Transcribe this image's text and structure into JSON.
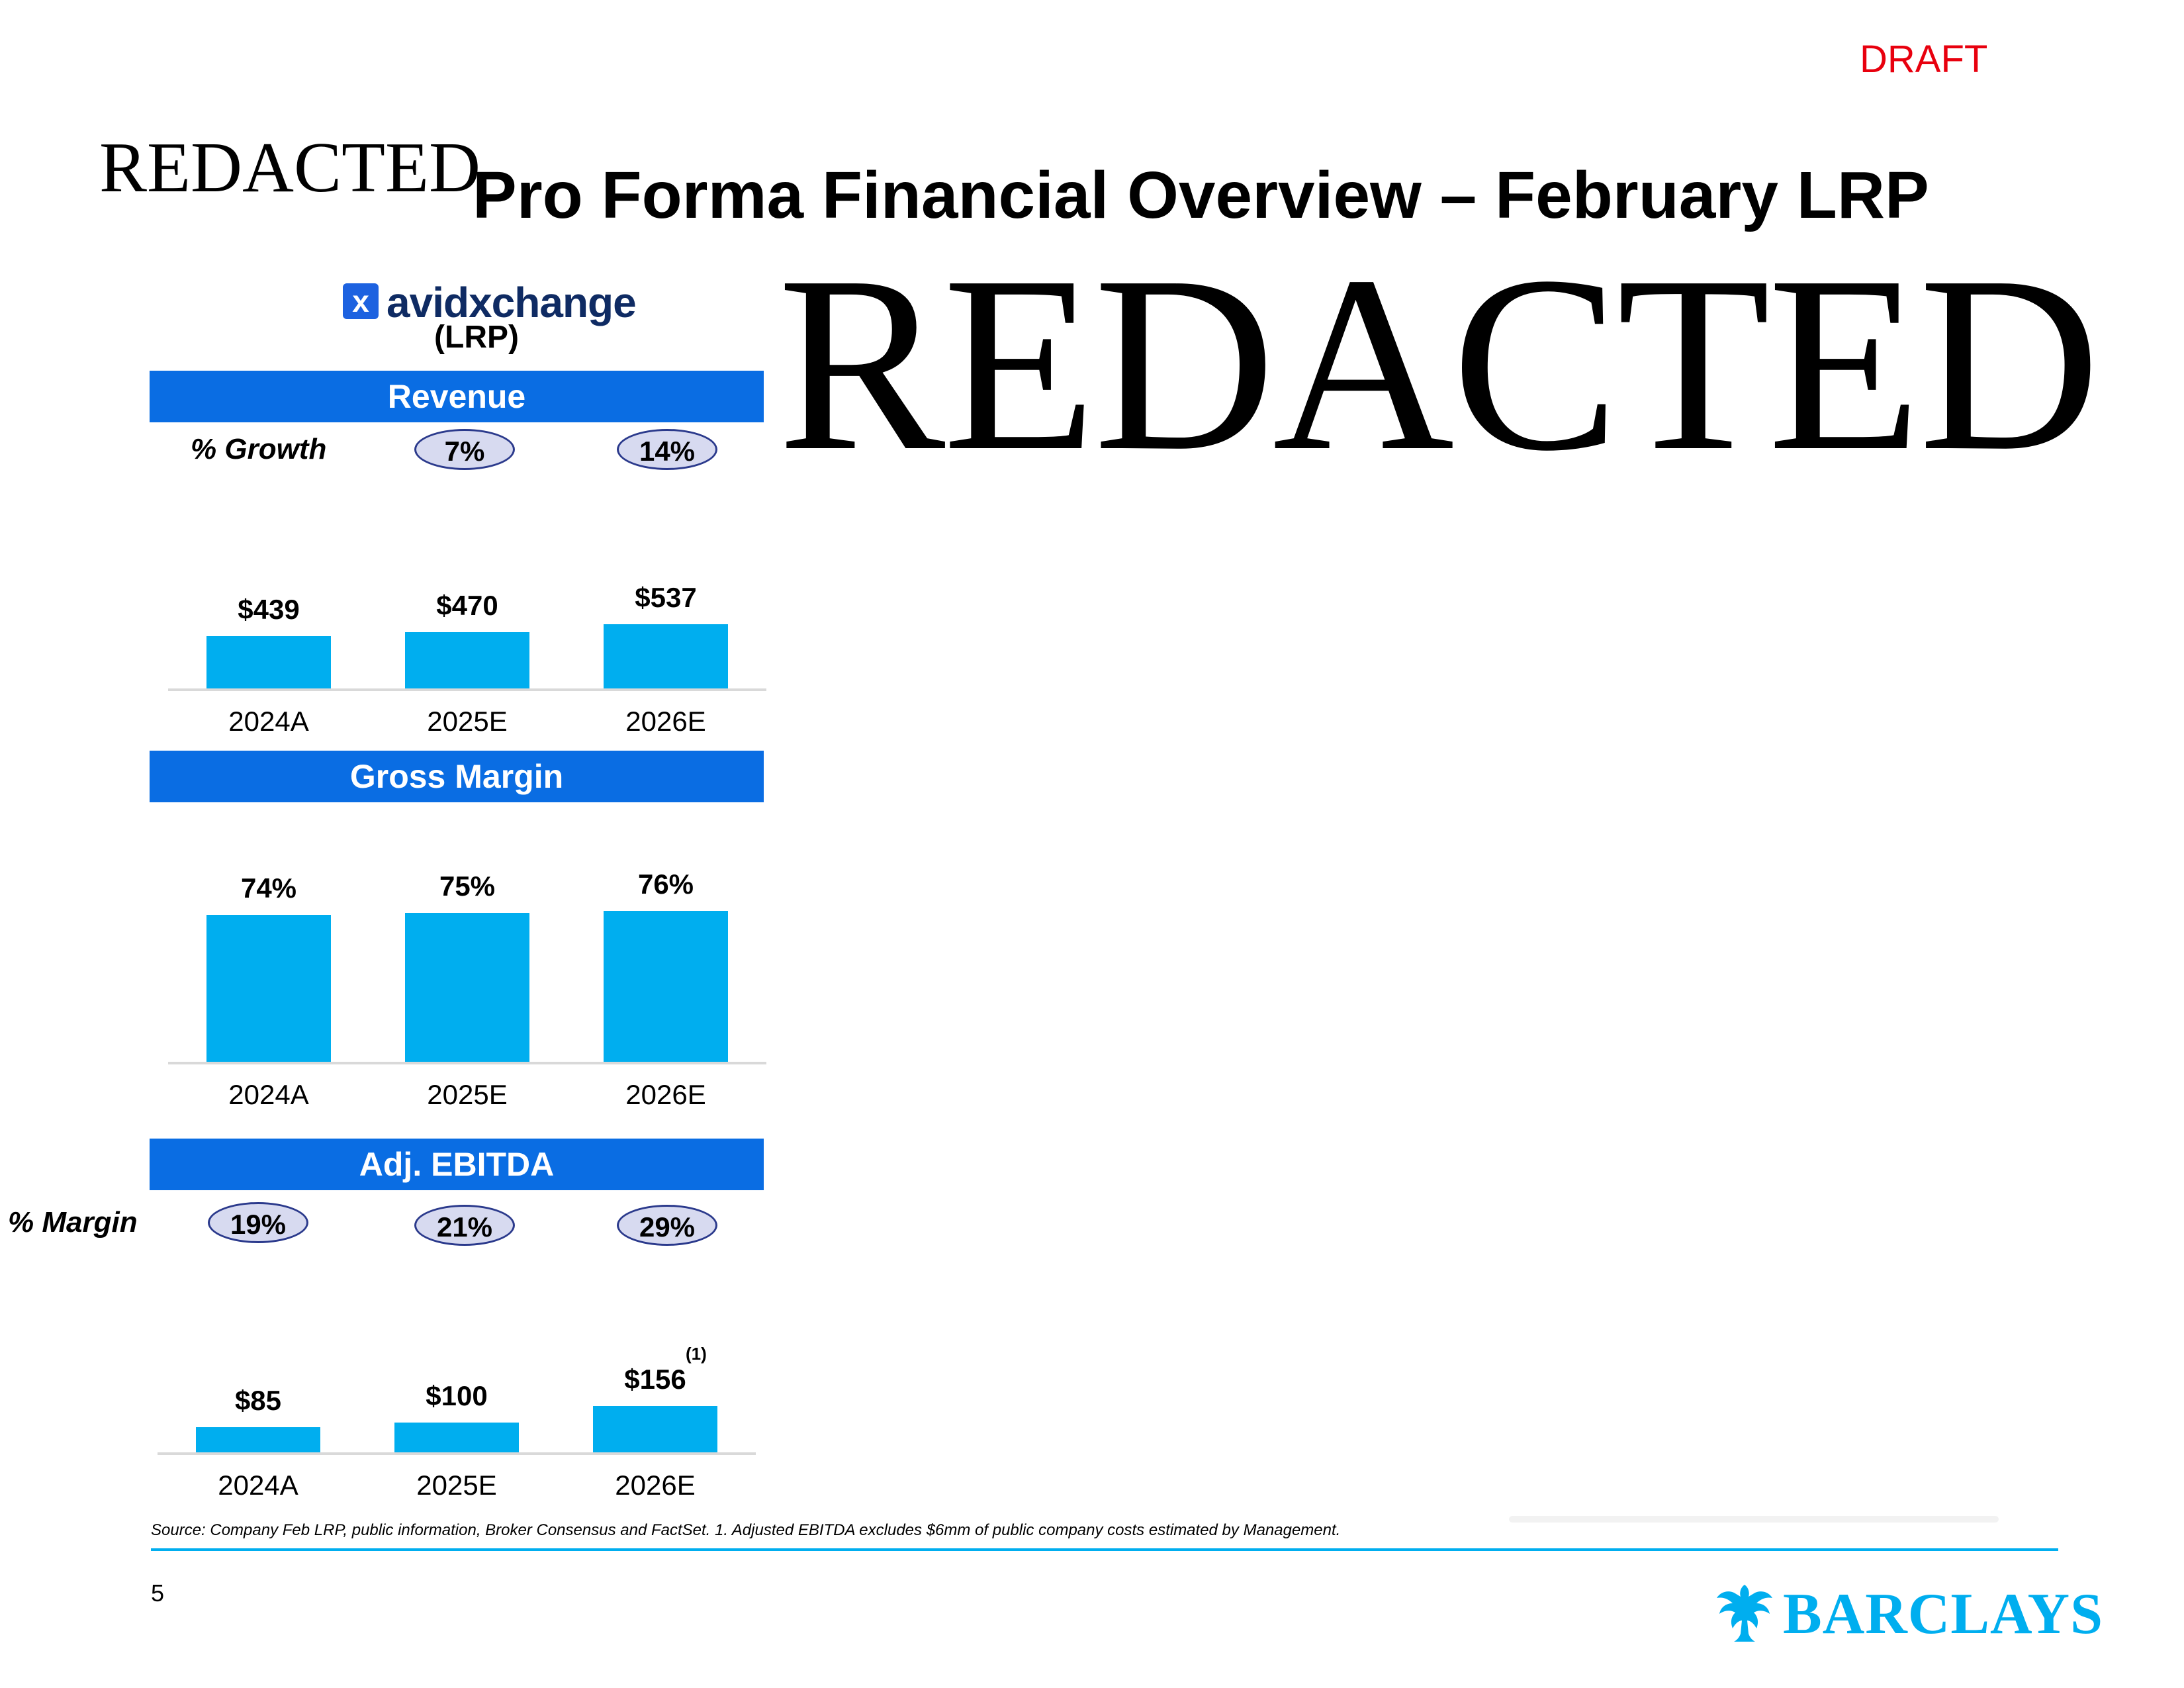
{
  "header": {
    "draft_label": "DRAFT",
    "redacted_small": "REDACTED",
    "title": "Pro Forma Financial Overview – February LRP",
    "redacted_big": "REDACTED"
  },
  "company": {
    "logo_text": "avidxchange",
    "logo_mark": "x",
    "subtitle": "(LRP)"
  },
  "revenue": {
    "band_label": "Revenue",
    "growth_label": "% Growth",
    "growth_values": [
      "7%",
      "14%"
    ]
  },
  "gross_margin": {
    "band_label": "Gross Margin"
  },
  "ebitda": {
    "band_label": "Adj. EBITDA",
    "margin_label": "% Margin",
    "margin_values": [
      "19%",
      "21%",
      "29%"
    ],
    "footnote_marker": "(1)"
  },
  "chart_data": [
    {
      "type": "bar",
      "title": "Revenue",
      "categories": [
        "2024A",
        "2025E",
        "2026E"
      ],
      "values": [
        439,
        470,
        537
      ],
      "labels": [
        "$439",
        "$470",
        "$537"
      ]
    },
    {
      "type": "bar",
      "title": "Gross Margin",
      "categories": [
        "2024A",
        "2025E",
        "2026E"
      ],
      "values": [
        74,
        75,
        76
      ],
      "labels": [
        "74%",
        "75%",
        "76%"
      ]
    },
    {
      "type": "bar",
      "title": "Adj. EBITDA",
      "categories": [
        "2024A",
        "2025E",
        "2026E"
      ],
      "values": [
        85,
        100,
        156
      ],
      "labels": [
        "$85",
        "$100",
        "$156"
      ]
    }
  ],
  "footer": {
    "source": "Source: Company Feb LRP, public information, Broker Consensus and FactSet. 1. Adjusted EBITDA excludes $6mm of public company costs estimated by Management.",
    "page_number": "5",
    "brand": "BARCLAYS"
  },
  "colors": {
    "band": "#0a6de3",
    "bar": "#00aeef",
    "pill_fill": "#d7daf0",
    "pill_border": "#2b3a8c",
    "draft": "#e8000e",
    "brand": "#00aeef"
  }
}
